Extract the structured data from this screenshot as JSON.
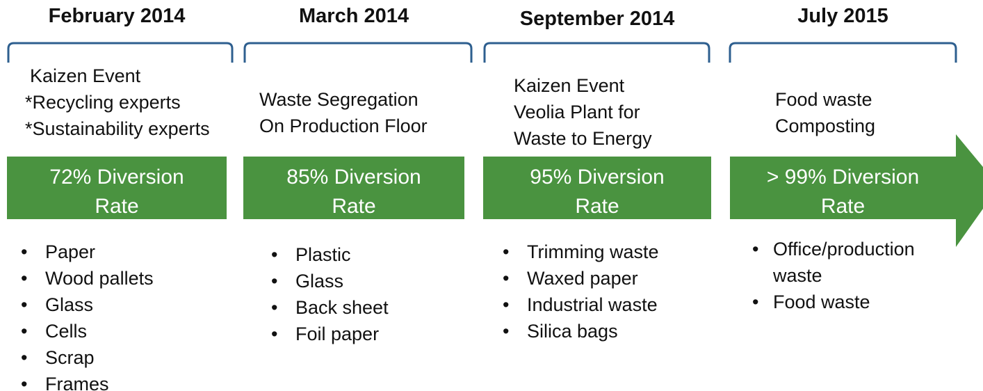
{
  "stages": [
    {
      "date": "February 2014",
      "description": [
        "Kaizen Event",
        "*Recycling experts",
        "*Sustainability experts"
      ],
      "rate": [
        "72% Diversion",
        "Rate"
      ],
      "items": [
        "Paper",
        "Wood pallets",
        "Glass",
        "Cells",
        "Scrap",
        "Frames"
      ]
    },
    {
      "date": "March 2014",
      "description": [
        "Waste Segregation",
        "On Production Floor"
      ],
      "rate": [
        "85% Diversion",
        "Rate"
      ],
      "items": [
        "Plastic",
        "Glass",
        "Back sheet",
        "Foil paper"
      ]
    },
    {
      "date": "September 2014",
      "description": [
        "Kaizen Event",
        "Veolia Plant for",
        "Waste to Energy"
      ],
      "rate": [
        "95% Diversion",
        "Rate"
      ],
      "items": [
        "Trimming waste",
        "Waxed paper",
        "Industrial waste",
        "Silica bags"
      ]
    },
    {
      "date": "July 2015",
      "description": [
        "Food waste",
        "Composting"
      ],
      "rate": [
        "> 99% Diversion",
        "Rate"
      ],
      "items": [
        "Office/production waste",
        "Food waste"
      ]
    }
  ]
}
